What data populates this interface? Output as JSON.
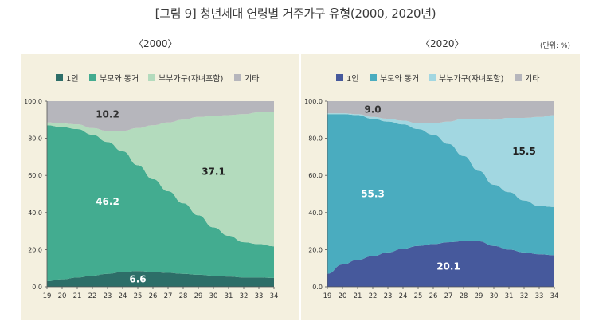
{
  "title": "[그림 9] 청년세대 연령별 거주가구 유형(2000, 2020년)",
  "unit_note": "(단위: %)",
  "chart_data": [
    {
      "type": "area",
      "title": "〈2000〉",
      "x": [
        "19",
        "20",
        "21",
        "22",
        "23",
        "24",
        "25",
        "26",
        "27",
        "28",
        "29",
        "30",
        "31",
        "32",
        "33",
        "34"
      ],
      "ylim": [
        0,
        100
      ],
      "yticks": [
        "0.0",
        "20.0",
        "40.0",
        "60.0",
        "80.0",
        "100.0"
      ],
      "series": [
        {
          "name": "1인",
          "color": "#2d6e68",
          "values": [
            3,
            4,
            5,
            6,
            7,
            8,
            8.5,
            8,
            7.5,
            7,
            6.5,
            6,
            5.5,
            5,
            5,
            4.8
          ]
        },
        {
          "name": "부모와 동거",
          "color": "#43ac90",
          "values": [
            84,
            82,
            80,
            76,
            71,
            65,
            57,
            50,
            44,
            38,
            32,
            26,
            22,
            19,
            18,
            17
          ]
        },
        {
          "name": "부부가구(자녀포함)",
          "color": "#b3dbbd",
          "values": [
            1.5,
            2,
            2.5,
            3.5,
            6,
            11,
            20,
            29,
            37,
            45,
            53,
            60,
            65,
            69,
            71,
            72.5
          ]
        },
        {
          "name": "기타",
          "color": "#b6b6bc",
          "values": [
            11.5,
            12,
            12.5,
            14.5,
            16,
            16,
            14.5,
            13,
            11.5,
            10,
            8.5,
            8,
            7.5,
            7,
            6,
            5.7
          ]
        }
      ],
      "annotations": [
        "10.2",
        "46.2",
        "37.1",
        "6.6"
      ]
    },
    {
      "type": "area",
      "title": "〈2020〉",
      "x": [
        "19",
        "20",
        "21",
        "22",
        "23",
        "24",
        "25",
        "26",
        "27",
        "28",
        "29",
        "30",
        "31",
        "32",
        "33",
        "34"
      ],
      "ylim": [
        0,
        100
      ],
      "yticks": [
        "0.0",
        "20.0",
        "40.0",
        "60.0",
        "80.0",
        "100.0"
      ],
      "series": [
        {
          "name": "1인",
          "color": "#46599c",
          "values": [
            7,
            12,
            14.5,
            16.5,
            18.5,
            20.5,
            22,
            23,
            24,
            24.5,
            24.5,
            22,
            20,
            18.5,
            17.5,
            17
          ]
        },
        {
          "name": "부모와 동거",
          "color": "#4aacbf",
          "values": [
            86,
            81,
            78,
            74,
            70.5,
            67,
            63,
            59,
            53,
            46,
            38,
            33,
            31,
            28,
            26,
            26
          ]
        },
        {
          "name": "부부가구(자녀포함)",
          "color": "#a2d7e1",
          "values": [
            0.5,
            0.5,
            0.5,
            1,
            1.5,
            2,
            3,
            6,
            12,
            20,
            28,
            35,
            40,
            44.5,
            48,
            49.5
          ]
        },
        {
          "name": "기타",
          "color": "#b6b6bc",
          "values": [
            6.5,
            6.5,
            7,
            8.5,
            9.5,
            10.5,
            12,
            12,
            11,
            9.5,
            9.5,
            10,
            9,
            9,
            8.5,
            7.5
          ]
        }
      ],
      "annotations": [
        "9.0",
        "55.3",
        "15.5",
        "20.1"
      ]
    }
  ]
}
